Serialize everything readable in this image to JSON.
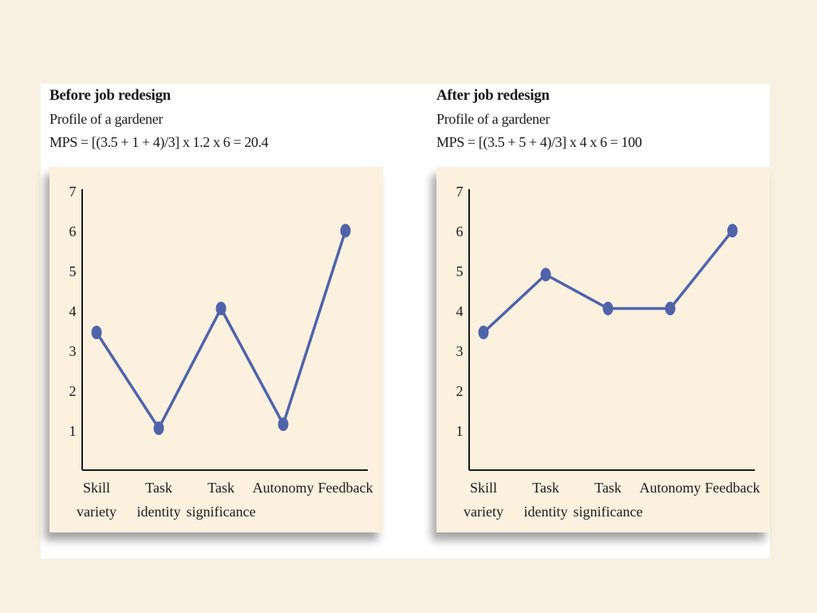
{
  "chart_data": [
    {
      "type": "line",
      "title": "Before job redesign",
      "subtitle": "Profile of a gardener",
      "formula": "MPS = [(3.5 + 1 + 4)/3] x 1.2 x 6 = 20.4",
      "categories": [
        [
          "Skill",
          "variety"
        ],
        [
          "Task",
          "identity"
        ],
        [
          "Task",
          "significance"
        ],
        [
          "Autonomy"
        ],
        [
          "Feedback"
        ]
      ],
      "values": [
        3.45,
        1.05,
        4.05,
        1.15,
        6.0
      ],
      "ylim": [
        0,
        7
      ],
      "yticks": [
        1,
        2,
        3,
        4,
        5,
        6,
        7
      ],
      "grid": false,
      "color": "#4f63aa"
    },
    {
      "type": "line",
      "title": "After job redesign",
      "subtitle": "Profile of a gardener",
      "formula": "MPS = [(3.5 + 5 + 4)/3] x 4 x 6 = 100",
      "categories": [
        [
          "Skill",
          "variety"
        ],
        [
          "Task",
          "identity"
        ],
        [
          "Task",
          "significance"
        ],
        [
          "Autonomy"
        ],
        [
          "Feedback"
        ]
      ],
      "values": [
        3.45,
        4.9,
        4.05,
        4.05,
        6.0
      ],
      "ylim": [
        0,
        7
      ],
      "yticks": [
        1,
        2,
        3,
        4,
        5,
        6,
        7
      ],
      "grid": false,
      "color": "#4f63aa"
    }
  ]
}
